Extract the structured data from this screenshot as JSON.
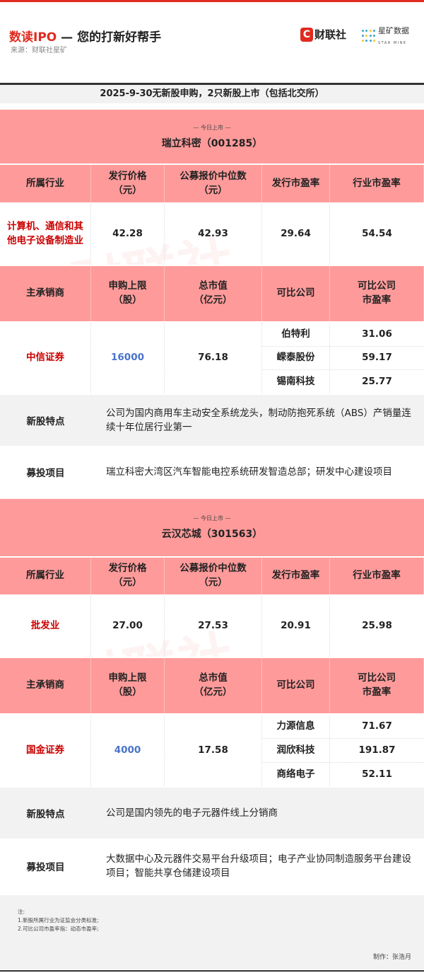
{
  "header": {
    "title_red": "数读IPO",
    "title_rest": " — 您的打新好帮手",
    "source": "来源：财联社星矿",
    "logo_cls": "财联社",
    "logo_cls_icon": "C",
    "logo_star": "星矿数据",
    "logo_star_en": "STAR MINE"
  },
  "summary": "2025-9-30无新股申购，2只新股上市（包括北交所）",
  "labels": {
    "tag": "— 今日上市 —",
    "industry": "所属行业",
    "price": "发行价格\n（元）",
    "median": "公募报价中位数\n（元）",
    "issue_pe": "发行市盈率",
    "industry_pe": "行业市盈率",
    "underwriter": "主承销商",
    "limit": "申购上限\n（股）",
    "mktcap": "总市值\n（亿元）",
    "comparable": "可比公司",
    "comparable_pe": "可比公司\n市盈率",
    "features": "新股特点",
    "projects": "募投项目"
  },
  "stocks": [
    {
      "name": "瑞立科密（001285）",
      "industry": "计算机、通信和其他电子设备制造业",
      "price": "42.28",
      "median": "42.93",
      "issue_pe": "29.64",
      "industry_pe": "54.54",
      "underwriter": "中信证券",
      "limit": "16000",
      "mktcap": "76.18",
      "comparables": [
        {
          "name": "伯特利",
          "pe": "31.06"
        },
        {
          "name": "嵘泰股份",
          "pe": "59.17"
        },
        {
          "name": "锡南科技",
          "pe": "25.77"
        }
      ],
      "features": "公司为国内商用车主动安全系统龙头，制动防抱死系统（ABS）产销量连续十年位居行业第一",
      "projects": "瑞立科密大湾区汽车智能电控系统研发智造总部；研发中心建设项目"
    },
    {
      "name": "云汉芯城（301563）",
      "industry": "批发业",
      "price": "27.00",
      "median": "27.53",
      "issue_pe": "20.91",
      "industry_pe": "25.98",
      "underwriter": "国金证券",
      "limit": "4000",
      "mktcap": "17.58",
      "comparables": [
        {
          "name": "力源信息",
          "pe": "71.67"
        },
        {
          "name": "润欣科技",
          "pe": "191.87"
        },
        {
          "name": "商络电子",
          "pe": "52.11"
        }
      ],
      "features": "公司是国内领先的电子元器件线上分销商",
      "projects": "大数据中心及元器件交易平台升级项目；电子产业协同制造服务平台建设项目；智能共享仓储建设项目"
    }
  ],
  "notes": {
    "title": "注:",
    "items": [
      "1.新股所属行业为证监会分类标准;",
      "2.可比公司市盈率指：动态市盈率;"
    ],
    "maker": "制作：张浩月"
  },
  "colors": {
    "brand_red": "#e02b20",
    "pink": "#ff9a9a",
    "underwriter_red": "#cc0000",
    "limit_blue": "#4a74c9"
  }
}
